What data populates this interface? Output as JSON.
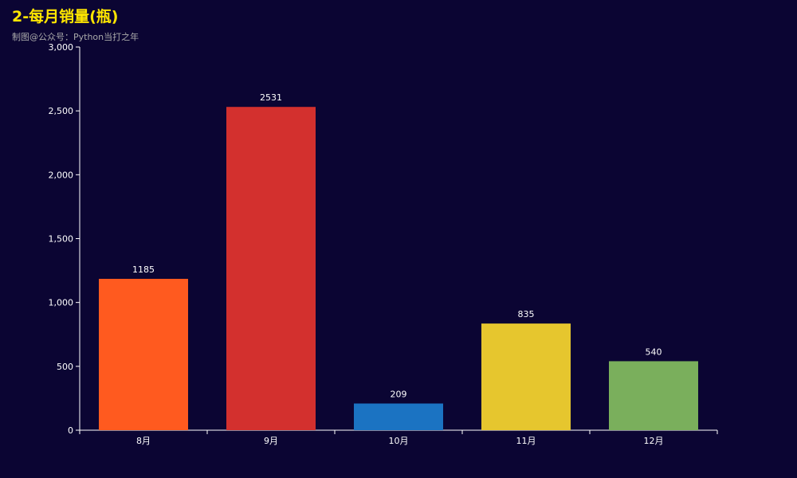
{
  "chart_data": {
    "type": "bar",
    "title": "2-每月销量(瓶)",
    "subtitle": "制图@公众号：Python当打之年",
    "categories": [
      "8月",
      "9月",
      "10月",
      "11月",
      "12月"
    ],
    "values": [
      1185,
      2531,
      209,
      835,
      540
    ],
    "colors": [
      "#ff5a1f",
      "#d3302e",
      "#1b73c2",
      "#e6c62e",
      "#7aaf5c"
    ],
    "ylim": [
      0,
      3000
    ],
    "yticks": [
      0,
      500,
      1000,
      1500,
      2000,
      2500,
      3000
    ],
    "ytick_labels": [
      "0",
      "500",
      "1,000",
      "1,500",
      "2,000",
      "2,500",
      "3,000"
    ],
    "show_data_labels": true,
    "grid": false,
    "legend": "none",
    "background_color": "#0b0533",
    "title_color": "#ffe600",
    "axis_color": "#ffffff"
  }
}
